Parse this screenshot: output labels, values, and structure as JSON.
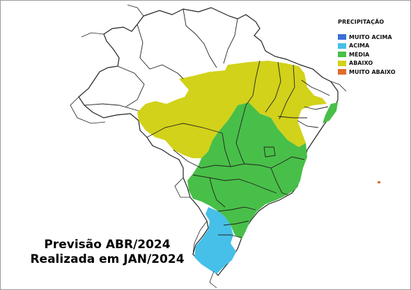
{
  "legend": {
    "title": "PRECIPITAÇÃO",
    "items": [
      {
        "label": "MUITO ACIMA",
        "color": "#3a6fd8"
      },
      {
        "label": "ACIMA",
        "color": "#46c0e8"
      },
      {
        "label": "MÉDIA",
        "color": "#48bf48"
      },
      {
        "label": "ABAIXO",
        "color": "#d2d21a"
      },
      {
        "label": "MUITO ABAIXO",
        "color": "#e06a2a"
      }
    ]
  },
  "caption": {
    "line1": "Previsão ABR/2024",
    "line2": "Realizada em JAN/2024"
  }
}
